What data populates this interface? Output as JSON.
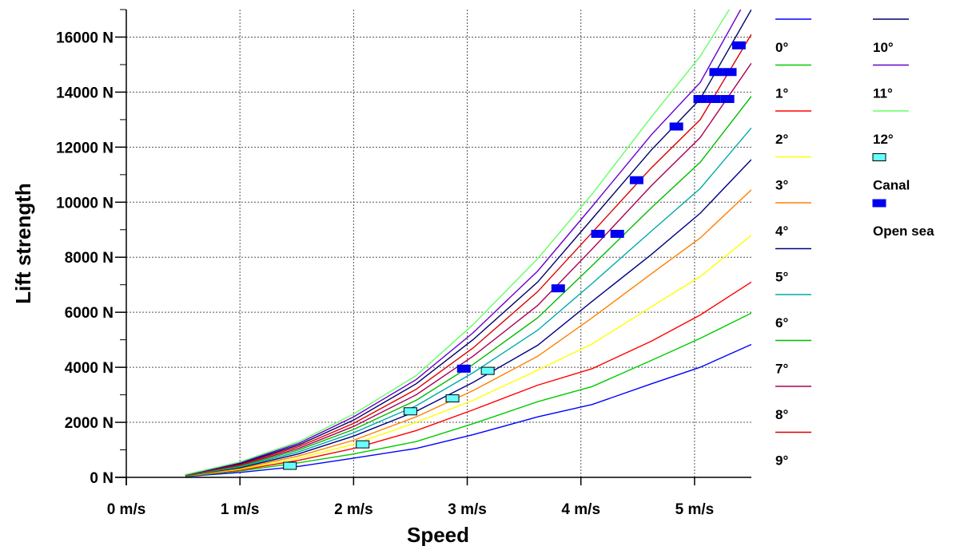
{
  "chart_data": {
    "type": "line",
    "title": "",
    "xlabel": "Speed",
    "ylabel": "Lift strength",
    "xlim": [
      0,
      5.5
    ],
    "ylim": [
      0,
      17000
    ],
    "x_ticks": [
      0,
      1,
      2,
      3,
      4,
      5
    ],
    "x_tick_labels": [
      "0 m/s",
      "1 m/s",
      "2 m/s",
      "3 m/s",
      "4 m/s",
      "5 m/s"
    ],
    "y_ticks": [
      0,
      2000,
      4000,
      6000,
      8000,
      10000,
      12000,
      14000,
      16000
    ],
    "y_tick_labels": [
      "0 N",
      "2000 N",
      "4000 N",
      "6000 N",
      "8000 N",
      "10000 N",
      "12000 N",
      "14000 N",
      "16000 N"
    ],
    "grid": true,
    "legend_position": "right",
    "x": [
      0.52,
      1.0,
      1.52,
      2.0,
      2.55,
      3.05,
      3.62,
      4.1,
      4.62,
      5.05,
      5.5
    ],
    "series": [
      {
        "name": "0°",
        "color": "#0000ff",
        "values": [
          30,
          180,
          400,
          700,
          1050,
          1550,
          2200,
          2650,
          3400,
          4000,
          4830
        ]
      },
      {
        "name": "1°",
        "color": "#00cc00",
        "values": [
          40,
          230,
          530,
          850,
          1300,
          1950,
          2750,
          3300,
          4250,
          5050,
          5970
        ]
      },
      {
        "name": "2°",
        "color": "#ff0000",
        "values": [
          50,
          260,
          620,
          1050,
          1700,
          2450,
          3350,
          3950,
          4950,
          5900,
          7100
        ]
      },
      {
        "name": "3°",
        "color": "#ffff00",
        "values": [
          55,
          290,
          700,
          1200,
          2000,
          2800,
          3900,
          4850,
          6200,
          7300,
          8800
        ]
      },
      {
        "name": "4°",
        "color": "#ff8000",
        "values": [
          60,
          320,
          780,
          1350,
          2200,
          3150,
          4400,
          5800,
          7400,
          8700,
          10450
        ]
      },
      {
        "name": "5°",
        "color": "#000080",
        "values": [
          65,
          350,
          860,
          1500,
          2400,
          3450,
          4800,
          6400,
          8100,
          9600,
          11550
        ]
      },
      {
        "name": "6°",
        "color": "#00aaaa",
        "values": [
          70,
          380,
          930,
          1620,
          2600,
          3800,
          5350,
          7050,
          8950,
          10500,
          12700
        ]
      },
      {
        "name": "7°",
        "color": "#00bb00",
        "values": [
          75,
          410,
          1000,
          1740,
          2800,
          4100,
          5800,
          7700,
          9800,
          11450,
          13850
        ]
      },
      {
        "name": "8°",
        "color": "#aa0055",
        "values": [
          80,
          440,
          1060,
          1850,
          3000,
          4400,
          6250,
          8300,
          10600,
          12350,
          15050
        ]
      },
      {
        "name": "9°",
        "color": "#dd0000",
        "values": [
          85,
          470,
          1120,
          1960,
          3200,
          4700,
          6750,
          8900,
          11250,
          13000,
          16100
        ]
      },
      {
        "name": "10°",
        "color": "#000066",
        "values": [
          90,
          500,
          1180,
          2080,
          3400,
          5000,
          7100,
          9400,
          11900,
          13750,
          17000
        ]
      },
      {
        "name": "11°",
        "color": "#6600cc",
        "values": [
          95,
          530,
          1240,
          2200,
          3550,
          5250,
          7500,
          9850,
          12450,
          14350,
          17700
        ]
      },
      {
        "name": "12°",
        "color": "#66ff66",
        "values": [
          100,
          560,
          1300,
          2300,
          3700,
          5550,
          7950,
          10300,
          13100,
          15300,
          18300
        ]
      }
    ],
    "markers": [
      {
        "name": "Canal",
        "fill": "#66ffff",
        "stroke": "#000000",
        "points": [
          [
            1.44,
            420
          ],
          [
            2.08,
            1200
          ],
          [
            2.5,
            2400
          ],
          [
            2.87,
            2870
          ],
          [
            3.18,
            3870
          ]
        ]
      },
      {
        "name": "Open sea",
        "fill": "#0000ee",
        "stroke": "#0000ee",
        "points": [
          [
            2.97,
            3950
          ],
          [
            3.8,
            6870
          ],
          [
            4.15,
            8850
          ],
          [
            4.32,
            8850
          ],
          [
            4.49,
            10800
          ],
          [
            4.84,
            12750
          ],
          [
            5.05,
            13750
          ],
          [
            5.17,
            13750
          ],
          [
            5.29,
            13750
          ],
          [
            5.19,
            14730
          ],
          [
            5.31,
            14730
          ],
          [
            5.39,
            15700
          ]
        ]
      }
    ]
  }
}
